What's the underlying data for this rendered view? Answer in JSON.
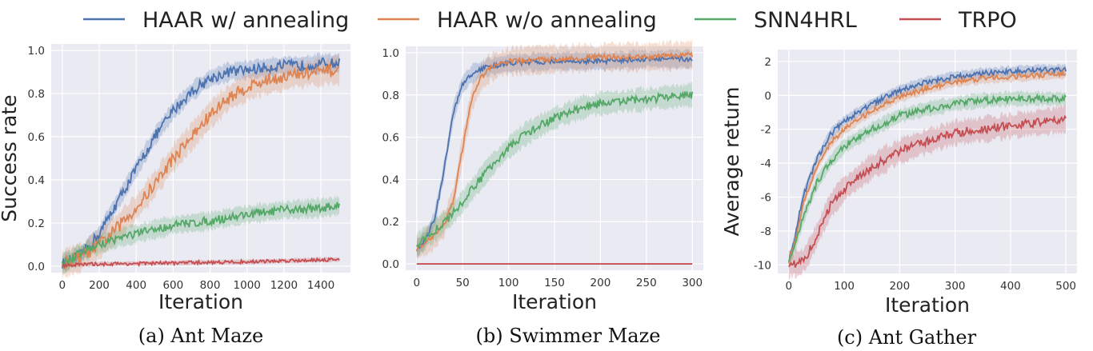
{
  "legend": [
    {
      "label": "HAAR w/ annealing",
      "color": "#4c72b0"
    },
    {
      "label": "HAAR w/o annealing",
      "color": "#dd8452"
    },
    {
      "label": "SNN4HRL",
      "color": "#55a868"
    },
    {
      "label": "TRPO",
      "color": "#c44e52"
    }
  ],
  "chart_data": [
    {
      "type": "line",
      "caption": "(a) Ant Maze",
      "xlabel": "Iteration",
      "ylabel": "Success rate",
      "xlim": [
        -60,
        1560
      ],
      "ylim": [
        -0.03,
        1.03
      ],
      "xticks": [
        0,
        200,
        400,
        600,
        800,
        1000,
        1200,
        1400
      ],
      "yticks": [
        0.0,
        0.2,
        0.4,
        0.6,
        0.8,
        1.0
      ],
      "ytick_decimals": 1,
      "x_max": 1500,
      "series": [
        {
          "name": "HAAR w/ annealing",
          "color": "#4c72b0",
          "points": [
            [
              0,
              0.01
            ],
            [
              100,
              0.05
            ],
            [
              200,
              0.15
            ],
            [
              300,
              0.3
            ],
            [
              400,
              0.45
            ],
            [
              500,
              0.6
            ],
            [
              600,
              0.72
            ],
            [
              700,
              0.81
            ],
            [
              800,
              0.87
            ],
            [
              900,
              0.9
            ],
            [
              1000,
              0.91
            ],
            [
              1100,
              0.92
            ],
            [
              1200,
              0.93
            ],
            [
              1300,
              0.93
            ],
            [
              1400,
              0.94
            ],
            [
              1500,
              0.94
            ]
          ],
          "band": 0.04,
          "noise": 0.025
        },
        {
          "name": "HAAR w/o annealing",
          "color": "#dd8452",
          "points": [
            [
              0,
              0.01
            ],
            [
              100,
              0.04
            ],
            [
              200,
              0.1
            ],
            [
              300,
              0.18
            ],
            [
              400,
              0.27
            ],
            [
              500,
              0.38
            ],
            [
              600,
              0.5
            ],
            [
              700,
              0.6
            ],
            [
              800,
              0.7
            ],
            [
              900,
              0.78
            ],
            [
              1000,
              0.83
            ],
            [
              1100,
              0.86
            ],
            [
              1200,
              0.88
            ],
            [
              1300,
              0.89
            ],
            [
              1400,
              0.9
            ],
            [
              1500,
              0.91
            ]
          ],
          "band": 0.06,
          "noise": 0.03
        },
        {
          "name": "SNN4HRL",
          "color": "#55a868",
          "points": [
            [
              0,
              0.01
            ],
            [
              100,
              0.06
            ],
            [
              200,
              0.1
            ],
            [
              300,
              0.13
            ],
            [
              400,
              0.15
            ],
            [
              500,
              0.17
            ],
            [
              600,
              0.19
            ],
            [
              800,
              0.21
            ],
            [
              1000,
              0.24
            ],
            [
              1200,
              0.26
            ],
            [
              1400,
              0.27
            ],
            [
              1500,
              0.28
            ]
          ],
          "band": 0.04,
          "noise": 0.02
        },
        {
          "name": "TRPO",
          "color": "#c44e52",
          "points": [
            [
              0,
              0.005
            ],
            [
              200,
              0.01
            ],
            [
              400,
              0.012
            ],
            [
              600,
              0.015
            ],
            [
              800,
              0.018
            ],
            [
              1000,
              0.02
            ],
            [
              1200,
              0.025
            ],
            [
              1400,
              0.03
            ],
            [
              1500,
              0.03
            ]
          ],
          "band": 0.01,
          "noise": 0.008
        }
      ]
    },
    {
      "type": "line",
      "caption": "(b) Swimmer Maze",
      "xlabel": "Iteration",
      "ylabel": "",
      "xlim": [
        -12,
        312
      ],
      "ylim": [
        -0.03,
        1.03
      ],
      "xticks": [
        0,
        50,
        100,
        150,
        200,
        250,
        300
      ],
      "yticks": [
        0.0,
        0.2,
        0.4,
        0.6,
        0.8,
        1.0
      ],
      "ytick_decimals": 1,
      "x_max": 300,
      "series": [
        {
          "name": "HAAR w/ annealing",
          "color": "#4c72b0",
          "points": [
            [
              0,
              0.07
            ],
            [
              10,
              0.12
            ],
            [
              20,
              0.22
            ],
            [
              30,
              0.45
            ],
            [
              40,
              0.72
            ],
            [
              50,
              0.85
            ],
            [
              60,
              0.9
            ],
            [
              75,
              0.93
            ],
            [
              100,
              0.95
            ],
            [
              150,
              0.96
            ],
            [
              200,
              0.96
            ],
            [
              250,
              0.97
            ],
            [
              300,
              0.97
            ]
          ],
          "band": 0.04,
          "noise": 0.012
        },
        {
          "name": "HAAR w/o annealing",
          "color": "#dd8452",
          "points": [
            [
              0,
              0.07
            ],
            [
              20,
              0.14
            ],
            [
              30,
              0.19
            ],
            [
              40,
              0.3
            ],
            [
              50,
              0.55
            ],
            [
              60,
              0.78
            ],
            [
              70,
              0.88
            ],
            [
              80,
              0.93
            ],
            [
              100,
              0.96
            ],
            [
              150,
              0.97
            ],
            [
              200,
              0.98
            ],
            [
              250,
              0.98
            ],
            [
              300,
              0.99
            ]
          ],
          "band": 0.06,
          "noise": 0.012
        },
        {
          "name": "SNN4HRL",
          "color": "#55a868",
          "points": [
            [
              0,
              0.09
            ],
            [
              20,
              0.16
            ],
            [
              40,
              0.24
            ],
            [
              60,
              0.35
            ],
            [
              80,
              0.46
            ],
            [
              100,
              0.55
            ],
            [
              120,
              0.62
            ],
            [
              150,
              0.69
            ],
            [
              180,
              0.74
            ],
            [
              200,
              0.76
            ],
            [
              250,
              0.78
            ],
            [
              300,
              0.8
            ]
          ],
          "band": 0.05,
          "noise": 0.02
        },
        {
          "name": "TRPO",
          "color": "#c44e52",
          "points": [
            [
              0,
              0.0
            ],
            [
              300,
              0.0
            ]
          ],
          "band": 0.0,
          "noise": 0.0
        }
      ]
    },
    {
      "type": "line",
      "caption": "(c) Ant Gather",
      "xlabel": "Iteration",
      "ylabel": "Average return",
      "xlim": [
        -20,
        520
      ],
      "ylim": [
        -10.5,
        2.7
      ],
      "xticks": [
        0,
        100,
        200,
        300,
        400,
        500
      ],
      "yticks": [
        -10,
        -8,
        -6,
        -4,
        -2,
        0,
        2
      ],
      "ytick_decimals": 0,
      "x_max": 500,
      "series": [
        {
          "name": "HAAR w/ annealing",
          "color": "#4c72b0",
          "points": [
            [
              0,
              -9.8
            ],
            [
              10,
              -8.5
            ],
            [
              25,
              -6.0
            ],
            [
              50,
              -3.8
            ],
            [
              75,
              -2.3
            ],
            [
              100,
              -1.5
            ],
            [
              150,
              -0.5
            ],
            [
              200,
              0.3
            ],
            [
              250,
              0.8
            ],
            [
              300,
              1.1
            ],
            [
              350,
              1.3
            ],
            [
              400,
              1.4
            ],
            [
              450,
              1.5
            ],
            [
              500,
              1.5
            ]
          ],
          "band": 0.3,
          "noise": 0.15
        },
        {
          "name": "HAAR w/o annealing",
          "color": "#dd8452",
          "points": [
            [
              0,
              -9.8
            ],
            [
              10,
              -8.8
            ],
            [
              25,
              -6.5
            ],
            [
              50,
              -4.2
            ],
            [
              75,
              -2.8
            ],
            [
              100,
              -2.0
            ],
            [
              150,
              -0.9
            ],
            [
              200,
              -0.1
            ],
            [
              250,
              0.4
            ],
            [
              300,
              0.8
            ],
            [
              350,
              1.0
            ],
            [
              400,
              1.1
            ],
            [
              450,
              1.2
            ],
            [
              500,
              1.3
            ]
          ],
          "band": 0.3,
          "noise": 0.15
        },
        {
          "name": "SNN4HRL",
          "color": "#55a868",
          "points": [
            [
              0,
              -9.8
            ],
            [
              10,
              -9.0
            ],
            [
              25,
              -7.3
            ],
            [
              50,
              -5.2
            ],
            [
              75,
              -3.9
            ],
            [
              100,
              -3.0
            ],
            [
              150,
              -2.0
            ],
            [
              200,
              -1.2
            ],
            [
              250,
              -0.8
            ],
            [
              300,
              -0.5
            ],
            [
              350,
              -0.3
            ],
            [
              400,
              -0.2
            ],
            [
              450,
              -0.2
            ],
            [
              500,
              -0.2
            ]
          ],
          "band": 0.4,
          "noise": 0.2
        },
        {
          "name": "TRPO",
          "color": "#c44e52",
          "points": [
            [
              0,
              -10.0
            ],
            [
              20,
              -9.9
            ],
            [
              30,
              -9.6
            ],
            [
              50,
              -8.3
            ],
            [
              75,
              -6.5
            ],
            [
              100,
              -5.5
            ],
            [
              150,
              -4.2
            ],
            [
              200,
              -3.3
            ],
            [
              250,
              -2.7
            ],
            [
              300,
              -2.2
            ],
            [
              350,
              -2.0
            ],
            [
              400,
              -1.8
            ],
            [
              450,
              -1.6
            ],
            [
              500,
              -1.4
            ]
          ],
          "band": 0.7,
          "noise": 0.25
        }
      ]
    }
  ]
}
